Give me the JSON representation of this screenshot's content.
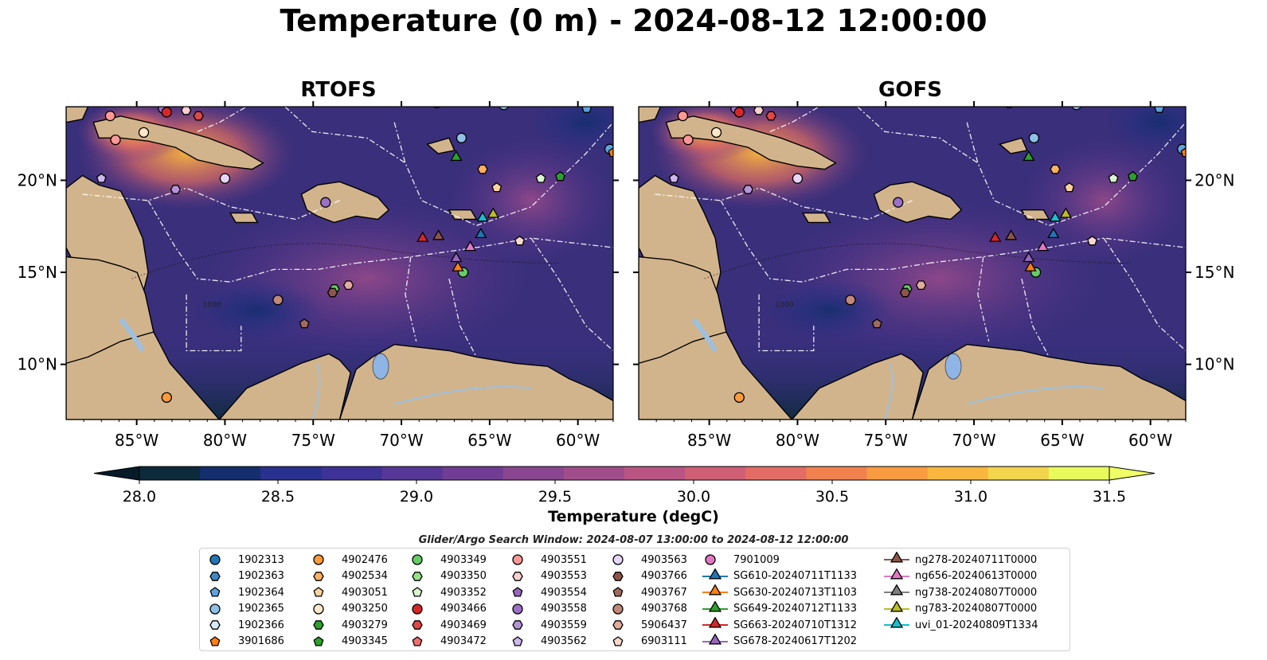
{
  "title": "Temperature (0 m) - 2024-08-12 12:00:00",
  "panels": [
    {
      "name": "RTOFS"
    },
    {
      "name": "GOFS"
    }
  ],
  "axes": {
    "lon_ticks": [
      "85°W",
      "80°W",
      "75°W",
      "70°W",
      "65°W",
      "60°W"
    ],
    "lat_ticks": [
      "20°N",
      "15°N",
      "10°N"
    ],
    "lon_range": [
      -89,
      -58
    ],
    "lat_range": [
      7,
      24
    ],
    "contour_label": "1000"
  },
  "colors": {
    "land": "#d2b48c",
    "ocean_base": "#3a2f7a",
    "lake": "#8fb4e6",
    "river": "#9cc0e0",
    "eez": "#ffffff"
  },
  "colorbar": {
    "label": "Temperature (degC)",
    "ticks": [
      "28.0",
      "28.5",
      "29.0",
      "29.5",
      "30.0",
      "30.5",
      "31.0",
      "31.5"
    ],
    "min": 28.0,
    "max": 31.5,
    "colors": [
      "#0d2a3b",
      "#142e6e",
      "#28318f",
      "#3e3296",
      "#573797",
      "#713d94",
      "#8a4690",
      "#a24d8b",
      "#ba5583",
      "#d05f76",
      "#e36d64",
      "#f1824f",
      "#f99b41",
      "#f9b63e",
      "#f2d44d",
      "#e8fa5b"
    ]
  },
  "search_window": "Glider/Argo Search Window: 2024-08-07 13:00:00 to 2024-08-12 12:00:00",
  "legend": {
    "columns": [
      [
        {
          "label": "1902313",
          "marker": "circle",
          "color": "#1f77b4"
        },
        {
          "label": "1902363",
          "marker": "hexagon",
          "color": "#3f88c5"
        },
        {
          "label": "1902364",
          "marker": "pentagon",
          "color": "#5ea3de"
        },
        {
          "label": "1902365",
          "marker": "circle",
          "color": "#8ec1e8"
        },
        {
          "label": "1902366",
          "marker": "hexagon",
          "color": "#d6ebf7"
        },
        {
          "label": "3901686",
          "marker": "pentagon",
          "color": "#ff7f0e"
        }
      ],
      [
        {
          "label": "4902476",
          "marker": "circle",
          "color": "#ff9a3c"
        },
        {
          "label": "4902534",
          "marker": "hexagon",
          "color": "#ffb060"
        },
        {
          "label": "4903051",
          "marker": "pentagon",
          "color": "#ffd39b"
        },
        {
          "label": "4903250",
          "marker": "circle",
          "color": "#ffe7c8"
        },
        {
          "label": "4903279",
          "marker": "hexagon",
          "color": "#2ca02c"
        },
        {
          "label": "4903345",
          "marker": "pentagon",
          "color": "#2ca02c"
        }
      ],
      [
        {
          "label": "4903349",
          "marker": "circle",
          "color": "#66cc66"
        },
        {
          "label": "4903350",
          "marker": "hexagon",
          "color": "#98df8a"
        },
        {
          "label": "4903352",
          "marker": "pentagon",
          "color": "#d8f5d0"
        },
        {
          "label": "4903466",
          "marker": "circle",
          "color": "#d62728"
        },
        {
          "label": "4903469",
          "marker": "hexagon",
          "color": "#e04848"
        },
        {
          "label": "4903472",
          "marker": "pentagon",
          "color": "#ee7070"
        }
      ],
      [
        {
          "label": "4903551",
          "marker": "circle",
          "color": "#ff9896"
        },
        {
          "label": "4903553",
          "marker": "hexagon",
          "color": "#ffd0cf"
        },
        {
          "label": "4903554",
          "marker": "pentagon",
          "color": "#9467bd"
        },
        {
          "label": "4903558",
          "marker": "circle",
          "color": "#9b70c8"
        },
        {
          "label": "4903559",
          "marker": "hexagon",
          "color": "#b494d9"
        },
        {
          "label": "4903562",
          "marker": "pentagon",
          "color": "#d0b8ee"
        }
      ],
      [
        {
          "label": "4903563",
          "marker": "circle",
          "color": "#e7d6f7"
        },
        {
          "label": "4903766",
          "marker": "hexagon",
          "color": "#8c564b"
        },
        {
          "label": "4903767",
          "marker": "pentagon",
          "color": "#a06a5e"
        },
        {
          "label": "4903768",
          "marker": "circle",
          "color": "#c08878"
        },
        {
          "label": "5906437",
          "marker": "hexagon",
          "color": "#e0ad9c"
        },
        {
          "label": "6903111",
          "marker": "pentagon",
          "color": "#f8d8cc"
        }
      ],
      [
        {
          "label": "7901009",
          "marker": "circle",
          "color": "#e377c2"
        },
        {
          "label": "SG610-20240711T1133",
          "marker": "triangle",
          "color": "#1f77b4"
        },
        {
          "label": "SG630-20240713T1103",
          "marker": "triangle",
          "color": "#ff7f0e"
        },
        {
          "label": "SG649-20240712T1133",
          "marker": "triangle",
          "color": "#2ca02c"
        },
        {
          "label": "SG663-20240710T1312",
          "marker": "triangle",
          "color": "#d62728"
        },
        {
          "label": "SG678-20240617T1202",
          "marker": "triangle",
          "color": "#9467bd"
        }
      ],
      [
        {
          "label": "ng278-20240711T0000",
          "marker": "triangle",
          "color": "#8c564b"
        },
        {
          "label": "ng656-20240613T0000",
          "marker": "triangle",
          "color": "#e377c2"
        },
        {
          "label": "ng738-20240807T0000",
          "marker": "triangle",
          "color": "#7f7f7f"
        },
        {
          "label": "ng783-20240807T0000",
          "marker": "triangle",
          "color": "#bcbd22"
        },
        {
          "label": "uvi_01-20240809T1334",
          "marker": "triangle",
          "color": "#17becf"
        }
      ]
    ]
  },
  "map_markers": [
    {
      "lon": -86.5,
      "lat": 23.5,
      "marker": "circle",
      "color": "#ff9896"
    },
    {
      "lon": -86.2,
      "lat": 22.2,
      "marker": "circle",
      "color": "#ff9896"
    },
    {
      "lon": -84.6,
      "lat": 22.6,
      "marker": "circle",
      "color": "#ffe7c8"
    },
    {
      "lon": -83.5,
      "lat": 23.9,
      "marker": "circle",
      "color": "#9b70c8"
    },
    {
      "lon": -83.3,
      "lat": 23.7,
      "marker": "circle",
      "color": "#d62728"
    },
    {
      "lon": -82.2,
      "lat": 23.8,
      "marker": "hexagon",
      "color": "#ffd0cf"
    },
    {
      "lon": -81.5,
      "lat": 23.5,
      "marker": "hexagon",
      "color": "#e04848"
    },
    {
      "lon": -87.0,
      "lat": 20.1,
      "marker": "pentagon",
      "color": "#d0b8ee"
    },
    {
      "lon": -82.8,
      "lat": 19.5,
      "marker": "hexagon",
      "color": "#b494d9"
    },
    {
      "lon": -80.0,
      "lat": 20.1,
      "marker": "circle",
      "color": "#e7d6f7"
    },
    {
      "lon": -74.3,
      "lat": 18.8,
      "marker": "circle",
      "color": "#9b70c8"
    },
    {
      "lon": -66.6,
      "lat": 22.3,
      "marker": "circle",
      "color": "#8ec1e8"
    },
    {
      "lon": -65.4,
      "lat": 20.6,
      "marker": "hexagon",
      "color": "#ffb060"
    },
    {
      "lon": -64.6,
      "lat": 19.6,
      "marker": "pentagon",
      "color": "#ffd39b"
    },
    {
      "lon": -62.1,
      "lat": 20.1,
      "marker": "pentagon",
      "color": "#d8f5d0"
    },
    {
      "lon": -61.0,
      "lat": 20.2,
      "marker": "pentagon",
      "color": "#2ca02c"
    },
    {
      "lon": -68.0,
      "lat": 24.2,
      "marker": "circle",
      "color": "#8ec1e8"
    },
    {
      "lon": -64.2,
      "lat": 24.1,
      "marker": "circle",
      "color": "#8ec1e8"
    },
    {
      "lon": -59.5,
      "lat": 23.9,
      "marker": "pentagon",
      "color": "#5ea3de"
    },
    {
      "lon": -58.2,
      "lat": 21.7,
      "marker": "circle",
      "color": "#5ea3de"
    },
    {
      "lon": -58.0,
      "lat": 21.5,
      "marker": "pentagon",
      "color": "#ff7f0e"
    },
    {
      "lon": -63.3,
      "lat": 16.7,
      "marker": "pentagon",
      "color": "#f8d8cc"
    },
    {
      "lon": -73.8,
      "lat": 14.1,
      "marker": "hexagon",
      "color": "#66cc66"
    },
    {
      "lon": -73.9,
      "lat": 13.9,
      "marker": "hexagon",
      "color": "#8c564b"
    },
    {
      "lon": -73.0,
      "lat": 14.3,
      "marker": "hexagon",
      "color": "#e0ad9c"
    },
    {
      "lon": -77.0,
      "lat": 13.5,
      "marker": "circle",
      "color": "#c08878"
    },
    {
      "lon": -75.5,
      "lat": 12.2,
      "marker": "pentagon",
      "color": "#a06a5e"
    },
    {
      "lon": -66.5,
      "lat": 15.0,
      "marker": "circle",
      "color": "#66cc66"
    },
    {
      "lon": -83.3,
      "lat": 8.2,
      "marker": "circle",
      "color": "#ff9a3c"
    },
    {
      "lon": -68.8,
      "lat": 16.8,
      "marker": "triangle",
      "color": "#d62728"
    },
    {
      "lon": -67.9,
      "lat": 16.9,
      "marker": "triangle",
      "color": "#8c564b"
    },
    {
      "lon": -66.9,
      "lat": 21.2,
      "marker": "triangle",
      "color": "#2ca02c"
    },
    {
      "lon": -65.4,
      "lat": 17.9,
      "marker": "triangle",
      "color": "#17becf"
    },
    {
      "lon": -65.5,
      "lat": 17.0,
      "marker": "triangle",
      "color": "#1f77b4"
    },
    {
      "lon": -64.8,
      "lat": 18.1,
      "marker": "triangle",
      "color": "#bcbd22"
    },
    {
      "lon": -66.1,
      "lat": 16.3,
      "marker": "triangle",
      "color": "#e377c2"
    },
    {
      "lon": -66.9,
      "lat": 15.7,
      "marker": "triangle",
      "color": "#9467bd"
    },
    {
      "lon": -66.8,
      "lat": 15.2,
      "marker": "triangle",
      "color": "#ff7f0e"
    }
  ]
}
